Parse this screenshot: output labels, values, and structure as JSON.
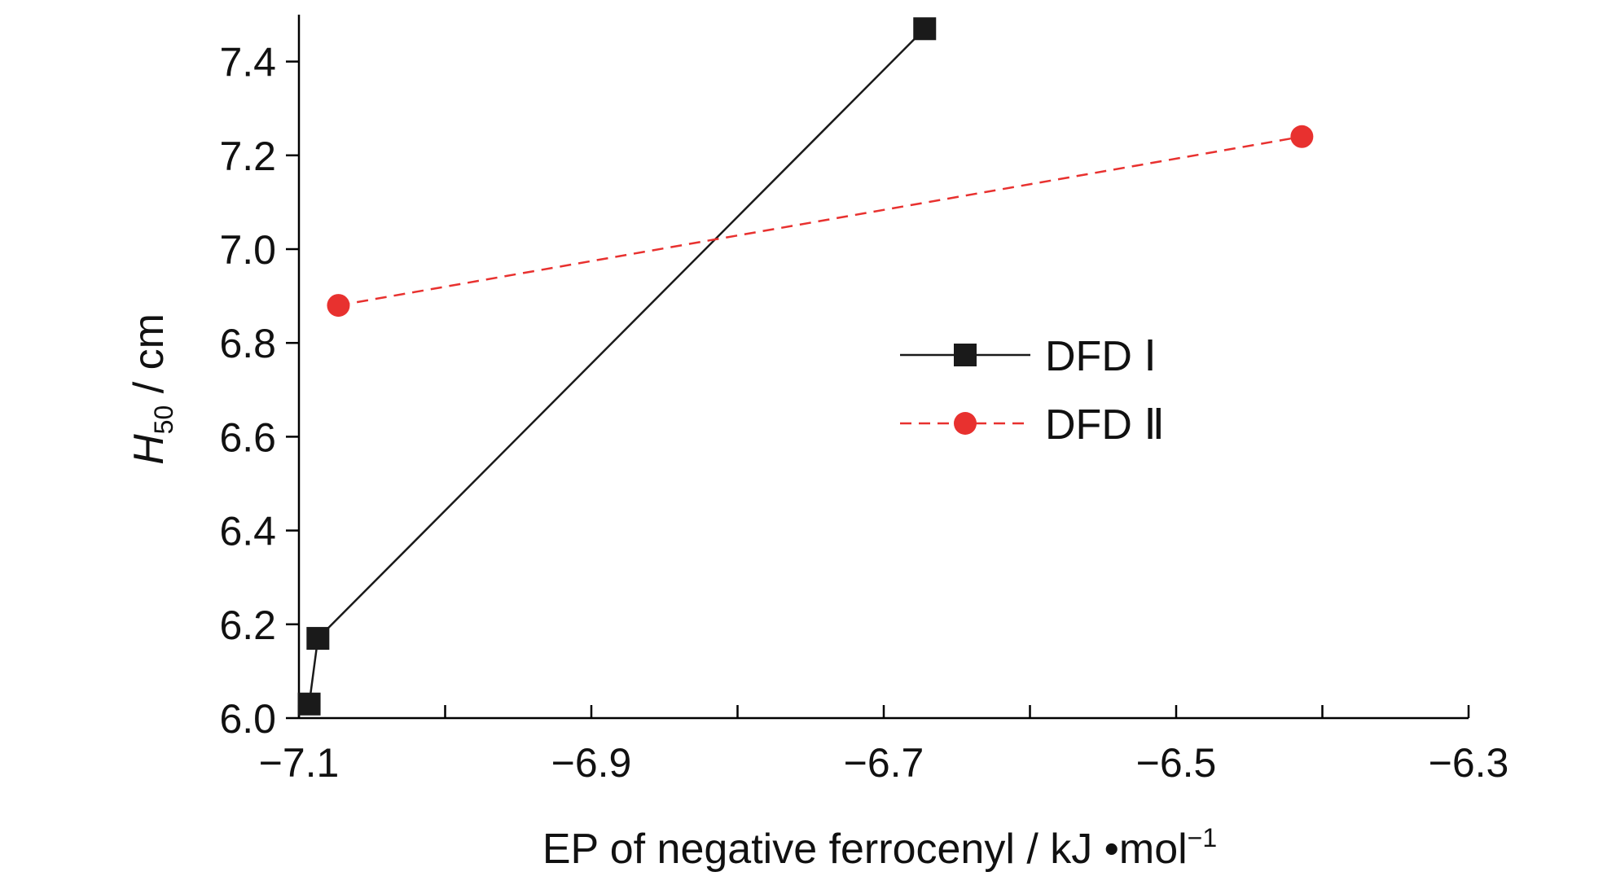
{
  "chart_data": {
    "type": "line",
    "xlabel": "EP of negative ferrocenyl / kJ •mol",
    "xlabel_sup": "−1",
    "ylabel_main": "H",
    "ylabel_sub": "50",
    "ylabel_unit": " / cm",
    "xlim": [
      -7.1,
      -6.3
    ],
    "ylim": [
      6.0,
      7.5
    ],
    "x_ticks": [
      -7.1,
      -6.9,
      -6.7,
      -6.5,
      -6.3
    ],
    "x_tick_labels": [
      "−7.1",
      "−6.9",
      "−6.7",
      "−6.5",
      "−6.3"
    ],
    "x_minor_ticks": [
      -7.0,
      -6.8,
      -6.6,
      -6.4
    ],
    "y_ticks": [
      6.0,
      6.2,
      6.4,
      6.6,
      6.8,
      7.0,
      7.2,
      7.4
    ],
    "y_tick_labels": [
      "6.0",
      "6.2",
      "6.4",
      "6.6",
      "6.8",
      "7.0",
      "7.2",
      "7.4"
    ],
    "grid": false,
    "legend_position": "center-right",
    "series": [
      {
        "name": "DFD Ⅰ",
        "color": "#1a1a1a",
        "marker": "square",
        "line_style": "solid",
        "points": [
          {
            "x": -7.093,
            "y": 6.03
          },
          {
            "x": -7.087,
            "y": 6.17
          },
          {
            "x": -6.672,
            "y": 7.47
          }
        ]
      },
      {
        "name": "DFD Ⅱ",
        "color": "#e8312f",
        "marker": "circle",
        "line_style": "dashed",
        "points": [
          {
            "x": -7.073,
            "y": 6.88
          },
          {
            "x": -6.414,
            "y": 7.24
          }
        ]
      }
    ]
  }
}
